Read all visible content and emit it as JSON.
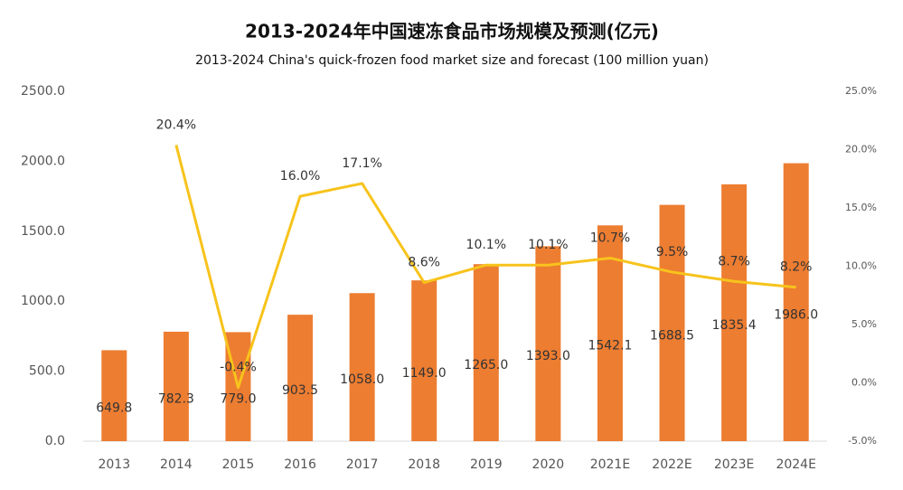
{
  "chart_data": {
    "type": "bar_line",
    "title": "2013-2024年中国速冻食品市场规模及预测(亿元)",
    "subtitle": "2013-2024 China's quick-frozen food market size and forecast (100 million yuan)",
    "categories": [
      "2013",
      "2014",
      "2015",
      "2016",
      "2017",
      "2018",
      "2019",
      "2020",
      "2021E",
      "2022E",
      "2023E",
      "2024E"
    ],
    "series": [
      {
        "type": "bar",
        "color": "#ed7d31",
        "values": [
          649.8,
          782.3,
          779.0,
          903.5,
          1058.0,
          1149.0,
          1265.0,
          1393.0,
          1542.1,
          1688.5,
          1835.4,
          1986.0
        ],
        "value_labels": [
          "649.8",
          "782.3",
          "779.0",
          "903.5",
          "1058.0",
          "1149.0",
          "1265.0",
          "1393.0",
          "1542.1",
          "1688.5",
          "1835.4",
          "1986.0"
        ]
      },
      {
        "type": "line",
        "axis": "y2",
        "color": "#f7c31c",
        "values": [
          null,
          20.4,
          -0.4,
          16.0,
          17.1,
          8.6,
          10.1,
          10.1,
          10.7,
          9.5,
          8.7,
          8.2
        ],
        "value_labels": [
          null,
          "20.4%",
          "-0.4%",
          "16.0%",
          "17.1%",
          "8.6%",
          "10.1%",
          "10.1%",
          "10.7%",
          "9.5%",
          "8.7%",
          "8.2%"
        ]
      }
    ],
    "ylim": [
      0,
      2500
    ],
    "yticks": [
      {
        "value": 0,
        "label": "0.0"
      },
      {
        "value": 500,
        "label": "500.0"
      },
      {
        "value": 1000,
        "label": "1000.0"
      },
      {
        "value": 1500,
        "label": "1500.0"
      },
      {
        "value": 2000,
        "label": "2000.0"
      },
      {
        "value": 2500,
        "label": "2500.0"
      }
    ],
    "y2lim": [
      -5,
      25
    ],
    "y2ticks": [
      {
        "value": -5,
        "label": "-5.0%"
      },
      {
        "value": 0,
        "label": "0.0%"
      },
      {
        "value": 5,
        "label": "5.0%"
      },
      {
        "value": 10,
        "label": "10.0%"
      },
      {
        "value": 15,
        "label": "15.0%"
      },
      {
        "value": 20,
        "label": "20.0%"
      },
      {
        "value": 25,
        "label": "25.0%"
      }
    ]
  }
}
